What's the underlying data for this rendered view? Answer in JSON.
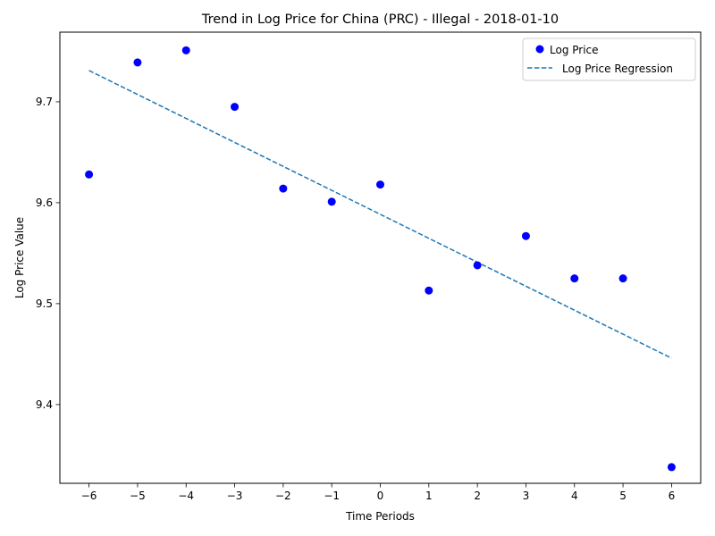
{
  "chart_data": {
    "type": "scatter",
    "title": "Trend in Log Price for China (PRC) - Illegal - 2018-01-10",
    "xlabel": "Time Periods",
    "ylabel": "Log Price Value",
    "xlim": [
      -6.6,
      6.6
    ],
    "ylim": [
      9.322,
      9.769
    ],
    "xticks": [
      -6,
      -5,
      -4,
      -3,
      -2,
      -1,
      0,
      1,
      2,
      3,
      4,
      5,
      6
    ],
    "yticks": [
      9.4,
      9.5,
      9.6,
      9.7
    ],
    "ytick_labels": [
      "9.4",
      "9.5",
      "9.6",
      "9.7"
    ],
    "grid": false,
    "legend_position": "top-right",
    "series": [
      {
        "name": "Log Price",
        "kind": "points",
        "color": "#0000ff",
        "x": [
          -6,
          -5,
          -4,
          -3,
          -2,
          -1,
          0,
          1,
          2,
          3,
          4,
          5,
          6
        ],
        "y": [
          9.628,
          9.739,
          9.751,
          9.695,
          9.614,
          9.601,
          9.618,
          9.513,
          9.538,
          9.567,
          9.525,
          9.525,
          9.338
        ]
      },
      {
        "name": "Log Price Regression",
        "kind": "dashed-line",
        "color": "#1f77b4",
        "x": [
          -6,
          6
        ],
        "y": [
          9.731,
          9.446
        ]
      }
    ]
  }
}
